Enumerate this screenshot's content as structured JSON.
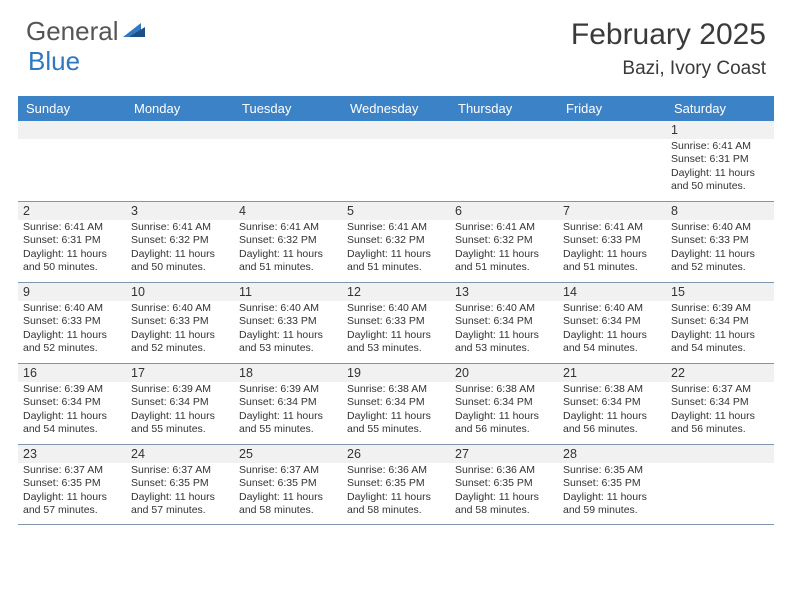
{
  "brand": {
    "word1": "General",
    "word2": "Blue"
  },
  "title": "February 2025",
  "location": "Bazi, Ivory Coast",
  "colors": {
    "header_bg": "#3c82c6",
    "header_fg": "#ffffff",
    "strip_bg": "#f1f1f1",
    "rule": "#7f97ae",
    "brand_gray": "#555555",
    "brand_blue": "#2f78c2"
  },
  "day_names": [
    "Sunday",
    "Monday",
    "Tuesday",
    "Wednesday",
    "Thursday",
    "Friday",
    "Saturday"
  ],
  "weeks": [
    {
      "nums": [
        "",
        "",
        "",
        "",
        "",
        "",
        "1"
      ],
      "cells": [
        null,
        null,
        null,
        null,
        null,
        null,
        {
          "sr": "Sunrise: 6:41 AM",
          "ss": "Sunset: 6:31 PM",
          "dl": "Daylight: 11 hours and 50 minutes."
        }
      ]
    },
    {
      "nums": [
        "2",
        "3",
        "4",
        "5",
        "6",
        "7",
        "8"
      ],
      "cells": [
        {
          "sr": "Sunrise: 6:41 AM",
          "ss": "Sunset: 6:31 PM",
          "dl": "Daylight: 11 hours and 50 minutes."
        },
        {
          "sr": "Sunrise: 6:41 AM",
          "ss": "Sunset: 6:32 PM",
          "dl": "Daylight: 11 hours and 50 minutes."
        },
        {
          "sr": "Sunrise: 6:41 AM",
          "ss": "Sunset: 6:32 PM",
          "dl": "Daylight: 11 hours and 51 minutes."
        },
        {
          "sr": "Sunrise: 6:41 AM",
          "ss": "Sunset: 6:32 PM",
          "dl": "Daylight: 11 hours and 51 minutes."
        },
        {
          "sr": "Sunrise: 6:41 AM",
          "ss": "Sunset: 6:32 PM",
          "dl": "Daylight: 11 hours and 51 minutes."
        },
        {
          "sr": "Sunrise: 6:41 AM",
          "ss": "Sunset: 6:33 PM",
          "dl": "Daylight: 11 hours and 51 minutes."
        },
        {
          "sr": "Sunrise: 6:40 AM",
          "ss": "Sunset: 6:33 PM",
          "dl": "Daylight: 11 hours and 52 minutes."
        }
      ]
    },
    {
      "nums": [
        "9",
        "10",
        "11",
        "12",
        "13",
        "14",
        "15"
      ],
      "cells": [
        {
          "sr": "Sunrise: 6:40 AM",
          "ss": "Sunset: 6:33 PM",
          "dl": "Daylight: 11 hours and 52 minutes."
        },
        {
          "sr": "Sunrise: 6:40 AM",
          "ss": "Sunset: 6:33 PM",
          "dl": "Daylight: 11 hours and 52 minutes."
        },
        {
          "sr": "Sunrise: 6:40 AM",
          "ss": "Sunset: 6:33 PM",
          "dl": "Daylight: 11 hours and 53 minutes."
        },
        {
          "sr": "Sunrise: 6:40 AM",
          "ss": "Sunset: 6:33 PM",
          "dl": "Daylight: 11 hours and 53 minutes."
        },
        {
          "sr": "Sunrise: 6:40 AM",
          "ss": "Sunset: 6:34 PM",
          "dl": "Daylight: 11 hours and 53 minutes."
        },
        {
          "sr": "Sunrise: 6:40 AM",
          "ss": "Sunset: 6:34 PM",
          "dl": "Daylight: 11 hours and 54 minutes."
        },
        {
          "sr": "Sunrise: 6:39 AM",
          "ss": "Sunset: 6:34 PM",
          "dl": "Daylight: 11 hours and 54 minutes."
        }
      ]
    },
    {
      "nums": [
        "16",
        "17",
        "18",
        "19",
        "20",
        "21",
        "22"
      ],
      "cells": [
        {
          "sr": "Sunrise: 6:39 AM",
          "ss": "Sunset: 6:34 PM",
          "dl": "Daylight: 11 hours and 54 minutes."
        },
        {
          "sr": "Sunrise: 6:39 AM",
          "ss": "Sunset: 6:34 PM",
          "dl": "Daylight: 11 hours and 55 minutes."
        },
        {
          "sr": "Sunrise: 6:39 AM",
          "ss": "Sunset: 6:34 PM",
          "dl": "Daylight: 11 hours and 55 minutes."
        },
        {
          "sr": "Sunrise: 6:38 AM",
          "ss": "Sunset: 6:34 PM",
          "dl": "Daylight: 11 hours and 55 minutes."
        },
        {
          "sr": "Sunrise: 6:38 AM",
          "ss": "Sunset: 6:34 PM",
          "dl": "Daylight: 11 hours and 56 minutes."
        },
        {
          "sr": "Sunrise: 6:38 AM",
          "ss": "Sunset: 6:34 PM",
          "dl": "Daylight: 11 hours and 56 minutes."
        },
        {
          "sr": "Sunrise: 6:37 AM",
          "ss": "Sunset: 6:34 PM",
          "dl": "Daylight: 11 hours and 56 minutes."
        }
      ]
    },
    {
      "nums": [
        "23",
        "24",
        "25",
        "26",
        "27",
        "28",
        ""
      ],
      "cells": [
        {
          "sr": "Sunrise: 6:37 AM",
          "ss": "Sunset: 6:35 PM",
          "dl": "Daylight: 11 hours and 57 minutes."
        },
        {
          "sr": "Sunrise: 6:37 AM",
          "ss": "Sunset: 6:35 PM",
          "dl": "Daylight: 11 hours and 57 minutes."
        },
        {
          "sr": "Sunrise: 6:37 AM",
          "ss": "Sunset: 6:35 PM",
          "dl": "Daylight: 11 hours and 58 minutes."
        },
        {
          "sr": "Sunrise: 6:36 AM",
          "ss": "Sunset: 6:35 PM",
          "dl": "Daylight: 11 hours and 58 minutes."
        },
        {
          "sr": "Sunrise: 6:36 AM",
          "ss": "Sunset: 6:35 PM",
          "dl": "Daylight: 11 hours and 58 minutes."
        },
        {
          "sr": "Sunrise: 6:35 AM",
          "ss": "Sunset: 6:35 PM",
          "dl": "Daylight: 11 hours and 59 minutes."
        },
        null
      ]
    }
  ]
}
